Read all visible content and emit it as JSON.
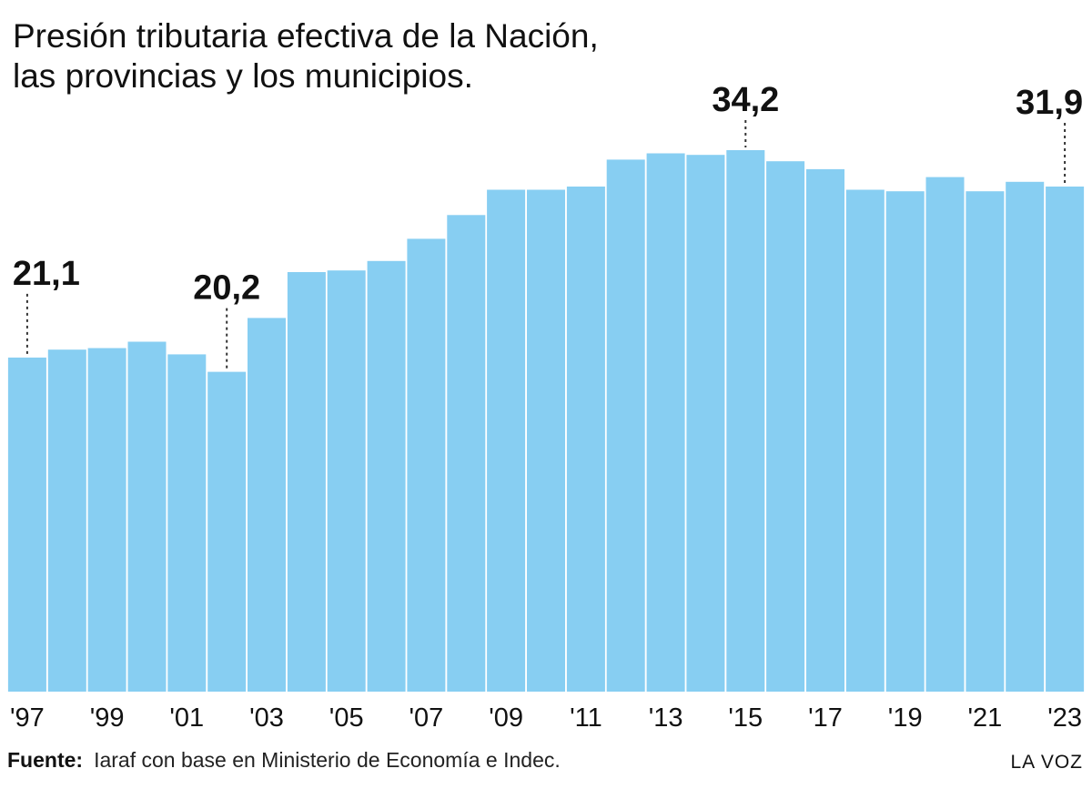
{
  "title": {
    "line1": "Presión tributaria efectiva de la Nación,",
    "line2": "las provincias y los municipios."
  },
  "footer": {
    "source_label": "Fuente:",
    "source_text": "Iaraf con base en Ministerio de Economía e Indec.",
    "brand": "LA VOZ"
  },
  "colors": {
    "bar": "#87CEF2",
    "text": "#111111"
  },
  "chart_data": {
    "type": "bar",
    "title": "Presión tributaria efectiva de la Nación, las provincias y los municipios.",
    "xlabel": "",
    "ylabel": "",
    "ylim": [
      0,
      34.2
    ],
    "grid": false,
    "legend": "none",
    "categories": [
      "'97",
      "'98",
      "'99",
      "'00",
      "'01",
      "'02",
      "'03",
      "'04",
      "'05",
      "'06",
      "'07",
      "'08",
      "'09",
      "'10",
      "'11",
      "'12",
      "'13",
      "'14",
      "'15",
      "'16",
      "'17",
      "'18",
      "'19",
      "'20",
      "'21",
      "'22",
      "'23"
    ],
    "tick_labels": [
      "'97",
      "'99",
      "'01",
      "'03",
      "'05",
      "'07",
      "'09",
      "'11",
      "'13",
      "'15",
      "'17",
      "'19",
      "'21",
      "'23"
    ],
    "values": [
      21.1,
      21.6,
      21.7,
      22.1,
      21.3,
      20.2,
      23.6,
      26.5,
      26.6,
      27.2,
      28.6,
      30.1,
      31.7,
      31.7,
      31.9,
      33.6,
      34.0,
      33.9,
      34.2,
      33.5,
      33.0,
      31.7,
      31.6,
      32.5,
      31.6,
      32.2,
      31.9
    ],
    "data_labels": [
      {
        "category": "'97",
        "text": "21,1"
      },
      {
        "category": "'02",
        "text": "20,2"
      },
      {
        "category": "'15",
        "text": "34,2"
      },
      {
        "category": "'23",
        "text": "31,9"
      }
    ]
  }
}
